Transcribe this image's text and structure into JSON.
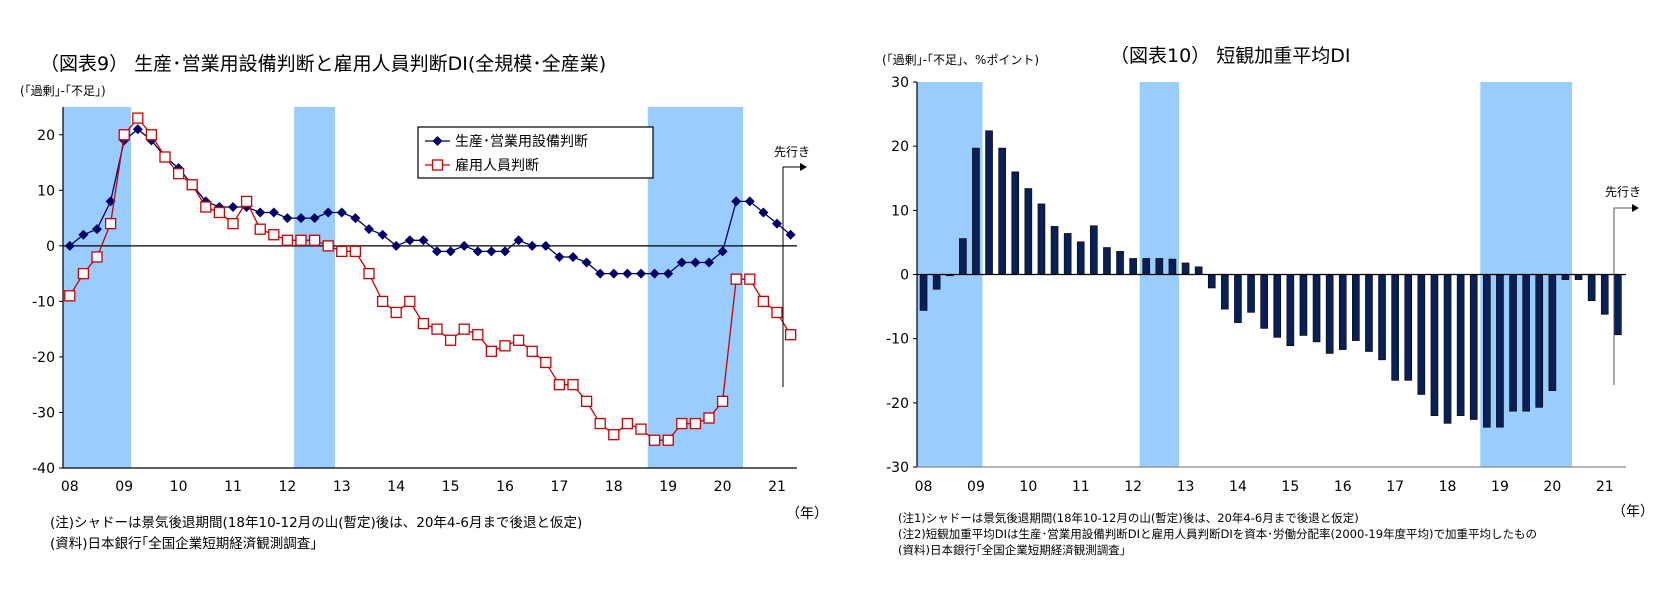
{
  "chart_data": [
    {
      "type": "line",
      "title": "（図表9） 生産･営業用設備判断と雇用人員判断DI(全規模･全産業)",
      "ylabel": "(｢過剰｣-｢不足｣)",
      "xlabel": "（年）",
      "ylim": [
        -40,
        25
      ],
      "yticks": [
        20,
        10,
        0,
        -10,
        -20,
        -30,
        -40
      ],
      "xtick_labels": [
        "08",
        "09",
        "10",
        "11",
        "12",
        "13",
        "14",
        "15",
        "16",
        "17",
        "18",
        "19",
        "20",
        "21"
      ],
      "x_frequency": "quarterly, 2008Q1-2021Q2",
      "legend": "top-center",
      "recession_shading": [
        [
          "2008Q1",
          "2009Q1"
        ],
        [
          "2012Q2",
          "2012Q4"
        ],
        [
          "2018Q4",
          "2020Q2"
        ]
      ],
      "forecast_label": "先行き",
      "series": [
        {
          "name": "生産･営業用設備判断",
          "color": "#000066",
          "marker": "diamond",
          "values": [
            0,
            2,
            3,
            8,
            19,
            21,
            19,
            16,
            14,
            11,
            8,
            7,
            7,
            7,
            6,
            6,
            5,
            5,
            5,
            6,
            6,
            5,
            3,
            2,
            0,
            1,
            1,
            -1,
            -1,
            0,
            -1,
            -1,
            -1,
            1,
            0,
            0,
            -2,
            -2,
            -3,
            -5,
            -5,
            -5,
            -5,
            -5,
            -5,
            -3,
            -3,
            -3,
            -1,
            8,
            8,
            6,
            4,
            2
          ]
        },
        {
          "name": "雇用人員判断",
          "color": "#cc0000",
          "marker": "square-open",
          "values": [
            -9,
            -5,
            -2,
            4,
            20,
            23,
            20,
            16,
            13,
            11,
            7,
            6,
            4,
            8,
            3,
            2,
            1,
            1,
            1,
            0,
            -1,
            -1,
            -5,
            -10,
            -12,
            -10,
            -14,
            -15,
            -17,
            -15,
            -16,
            -19,
            -18,
            -17,
            -19,
            -21,
            -25,
            -25,
            -28,
            -32,
            -34,
            -32,
            -33,
            -35,
            -35,
            -32,
            -32,
            -31,
            -28,
            -6,
            -6,
            -10,
            -12,
            -16
          ]
        }
      ],
      "notes": [
        "(注)シャドーは景気後退期間(18年10-12月の山(暫定)後は、20年4-6月まで後退と仮定)",
        "(資料)日本銀行｢全国企業短期経済観測調査｣"
      ]
    },
    {
      "type": "bar",
      "title": "（図表10） 短観加重平均DI",
      "ylabel": "(｢過剰｣-｢不足｣、%ポイント)",
      "xlabel": "（年）",
      "ylim": [
        -30,
        30
      ],
      "yticks": [
        30,
        20,
        10,
        0,
        -10,
        -20,
        -30
      ],
      "xtick_labels": [
        "08",
        "09",
        "10",
        "11",
        "12",
        "13",
        "14",
        "15",
        "16",
        "17",
        "18",
        "19",
        "20",
        "21"
      ],
      "x_frequency": "quarterly, 2008Q1-2021Q2",
      "recession_shading": [
        [
          "2008Q1",
          "2009Q1"
        ],
        [
          "2012Q2",
          "2012Q4"
        ],
        [
          "2018Q4",
          "2020Q2"
        ]
      ],
      "forecast_label": "先行き",
      "bar_color": "#0a1f55",
      "values": [
        -5.6,
        -2.3,
        -0.2,
        5.6,
        19.7,
        22.4,
        19.7,
        16.0,
        13.4,
        11.0,
        7.5,
        6.4,
        5.1,
        7.6,
        4.2,
        3.6,
        2.5,
        2.5,
        2.5,
        2.4,
        1.8,
        1.2,
        -2.1,
        -5.4,
        -7.5,
        -5.9,
        -8.4,
        -9.8,
        -11.1,
        -9.5,
        -10.5,
        -12.3,
        -11.7,
        -10.3,
        -12.0,
        -13.3,
        -16.5,
        -16.5,
        -18.7,
        -22.0,
        -23.2,
        -22.0,
        -22.6,
        -23.8,
        -23.8,
        -21.3,
        -21.3,
        -20.7,
        -18.1,
        -0.8,
        -0.8,
        -4.1,
        -6.2,
        -9.4
      ],
      "notes": [
        "(注1)シャドーは景気後退期間(18年10-12月の山(暫定)後は、20年4-6月まで後退と仮定)",
        "(注2)短観加重平均DIは生産･営業用設備判断DIと雇用人員判断DIを資本･労働分配率(2000-19年度平均)で加重平均したもの",
        "(資料)日本銀行｢全国企業短期経済観測調査｣"
      ]
    }
  ],
  "colors": {
    "shade": "#99ccff",
    "axis": "#000000"
  }
}
